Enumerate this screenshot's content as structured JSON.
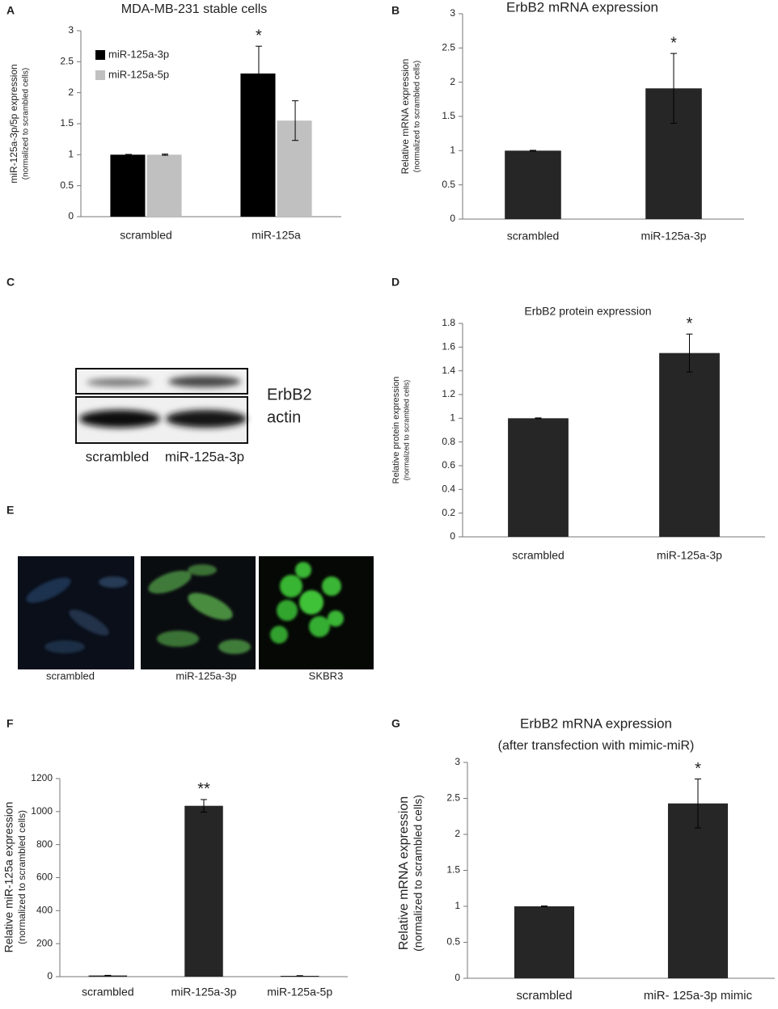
{
  "chart_data": [
    {
      "type": "bar",
      "panel": "A",
      "title": "MDA-MB-231 stable cells",
      "ylabel": "miR-125a-3p/5p expression",
      "ylabel_sub": "(normalized to scrambled cells)",
      "categories": [
        "scrambled",
        "miR-125a"
      ],
      "series": [
        {
          "name": "miR-125a-3p",
          "color": "#000000",
          "values": [
            1,
            2.31
          ],
          "errors": [
            0.005,
            0.44
          ]
        },
        {
          "name": "miR-125a-5p",
          "color": "#c0c0c0",
          "values": [
            1,
            1.55
          ],
          "errors": [
            0.01,
            0.32
          ]
        }
      ],
      "significance": [
        [
          null,
          "*"
        ],
        [
          null,
          null
        ]
      ],
      "ylim": [
        0,
        3
      ],
      "yticks": [
        0,
        0.5,
        1,
        1.5,
        2,
        2.5,
        3
      ],
      "legend": "upper left"
    },
    {
      "type": "bar",
      "panel": "B",
      "title": "ErbB2 mRNA expression",
      "ylabel": "Relative mRNA expression",
      "ylabel_sub": "(normalized to scrambled cells)",
      "categories": [
        "scrambled",
        "miR-125a-3p"
      ],
      "color": "#262626",
      "values": [
        1,
        1.91
      ],
      "errors": [
        0.005,
        0.51
      ],
      "significance": [
        null,
        "*"
      ],
      "ylim": [
        0,
        3
      ],
      "yticks": [
        0,
        0.5,
        1,
        1.5,
        2,
        2.5,
        3
      ]
    },
    {
      "type": "bar",
      "panel": "D",
      "title": "ErbB2 protein expression",
      "ylabel": "Relative protein expression",
      "ylabel_sub": "(normalized to scrambled cells)",
      "categories": [
        "scrambled",
        "miR-125a-3p"
      ],
      "color": "#262626",
      "values": [
        1,
        1.55
      ],
      "errors": [
        0.003,
        0.16
      ],
      "significance": [
        null,
        "*"
      ],
      "ylim": [
        0,
        1.8
      ],
      "yticks": [
        0,
        0.2,
        0.4,
        0.6,
        0.8,
        1,
        1.2,
        1.4,
        1.6,
        1.8
      ]
    },
    {
      "type": "bar",
      "panel": "F",
      "ylabel": "Relative miR-125a expression",
      "ylabel_sub": "(normalized to scrambled  cells)",
      "categories": [
        "scrambled",
        "miR-125a-3p",
        "miR-125a-5p"
      ],
      "color": "#262626",
      "values": [
        7,
        1035,
        5
      ],
      "errors": [
        1,
        38,
        1
      ],
      "significance": [
        null,
        "**",
        null
      ],
      "ylim": [
        0,
        1200
      ],
      "yticks": [
        0,
        200,
        400,
        600,
        800,
        1000,
        1200
      ]
    },
    {
      "type": "bar",
      "panel": "G",
      "title": "ErbB2 mRNA expression",
      "subtitle": "(after transfection with mimic-miR)",
      "ylabel": "Relative mRNA expression",
      "ylabel_sub": "(normalized to scrambled cells)",
      "categories": [
        "scrambled",
        "miR- 125a-3p mimic"
      ],
      "color": "#262626",
      "values": [
        1,
        2.43
      ],
      "errors": [
        0.005,
        0.34
      ],
      "significance": [
        null,
        "*"
      ],
      "ylim": [
        0,
        3
      ],
      "yticks": [
        0,
        0.5,
        1,
        1.5,
        2,
        2.5,
        3
      ]
    }
  ],
  "blot": {
    "panel": "C",
    "bands": [
      "ErbB2",
      "actin"
    ],
    "lanes": [
      "scrambled",
      "miR-125a-3p"
    ]
  },
  "images": {
    "panel": "E",
    "labels": [
      "scrambled",
      "miR-125a-3p",
      "SKBR3"
    ]
  }
}
